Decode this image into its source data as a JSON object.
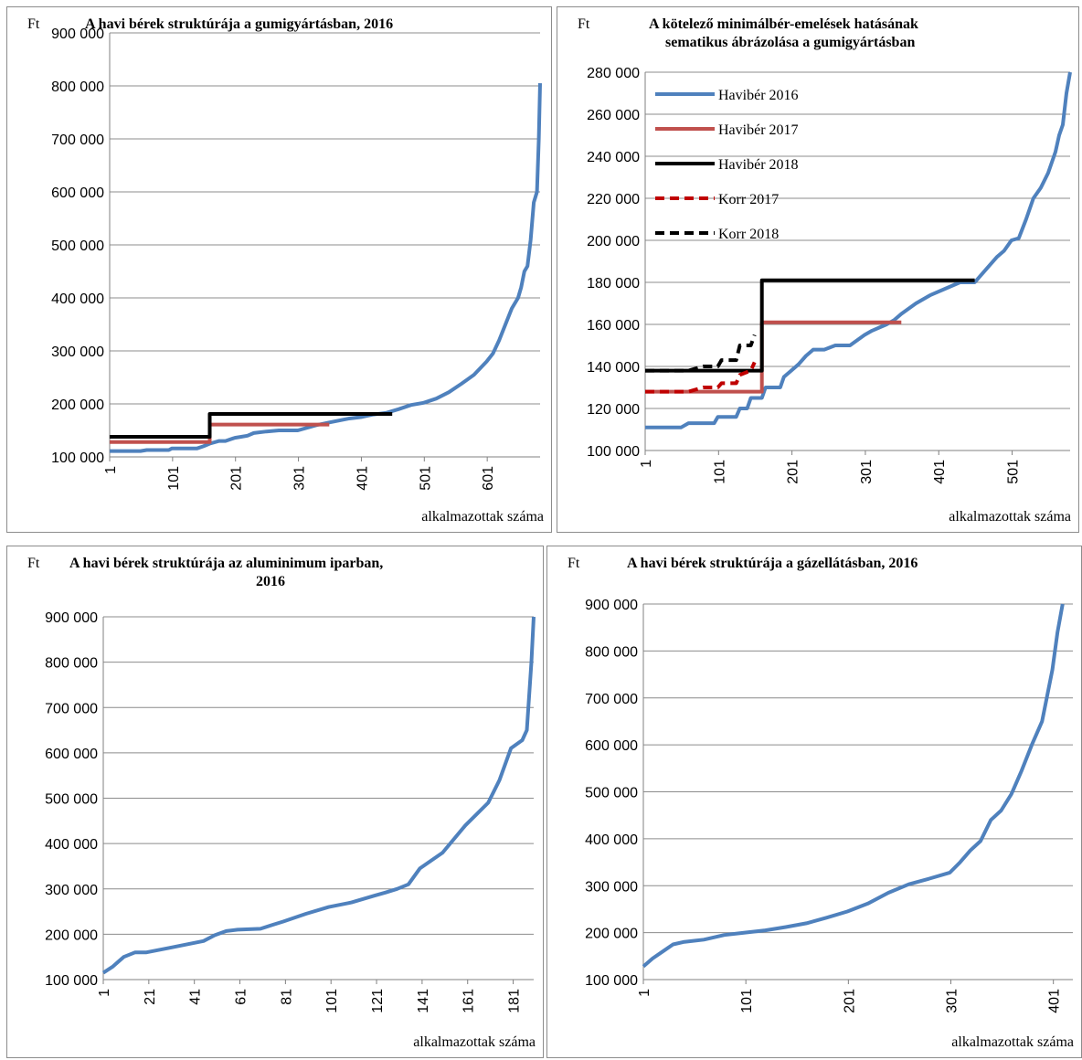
{
  "chart_data": [
    {
      "type": "line",
      "unit_label": "Ft",
      "title": [
        "A havi bérek struktúrája a gumigyártásban, 2016"
      ],
      "xlabel": "alkalmazottak száma",
      "ylim": [
        100000,
        900000
      ],
      "yticks": [
        "100 000",
        "200 000",
        "300 000",
        "400 000",
        "500 000",
        "600 000",
        "700 000",
        "800 000",
        "900 000"
      ],
      "ytick_values": [
        100000,
        200000,
        300000,
        400000,
        500000,
        600000,
        700000,
        800000,
        900000
      ],
      "xlim": [
        1,
        685
      ],
      "xticks": [
        "1",
        "101",
        "201",
        "301",
        "401",
        "501",
        "601"
      ],
      "xtick_values": [
        1,
        101,
        201,
        301,
        401,
        501,
        601
      ],
      "grid": true,
      "series": [
        {
          "color": "#4f81bd",
          "width": 4,
          "dash": false,
          "step": false,
          "x": [
            1,
            50,
            60,
            95,
            100,
            140,
            150,
            160,
            175,
            185,
            200,
            210,
            220,
            230,
            250,
            270,
            300,
            330,
            350,
            380,
            400,
            420,
            440,
            460,
            480,
            500,
            520,
            540,
            560,
            580,
            600,
            610,
            620,
            630,
            640,
            650,
            655,
            660,
            665,
            670,
            675,
            680,
            683,
            685
          ],
          "y": [
            111000,
            111000,
            113000,
            113000,
            116000,
            116000,
            120000,
            125000,
            130000,
            130000,
            136000,
            138000,
            140000,
            145000,
            148000,
            150000,
            150000,
            160000,
            165000,
            172000,
            175000,
            180000,
            183000,
            190000,
            198000,
            202000,
            210000,
            222000,
            238000,
            255000,
            280000,
            295000,
            320000,
            350000,
            380000,
            400000,
            420000,
            450000,
            460000,
            510000,
            580000,
            600000,
            700000,
            805000
          ]
        },
        {
          "color": "#c0504d",
          "width": 4,
          "dash": false,
          "step": true,
          "x": [
            1,
            160,
            160,
            350
          ],
          "y": [
            128000,
            128000,
            161000,
            161000
          ]
        },
        {
          "color": "#000000",
          "width": 4,
          "dash": false,
          "step": true,
          "x": [
            1,
            160,
            160,
            450
          ],
          "y": [
            138000,
            138000,
            181000,
            181000
          ]
        }
      ]
    },
    {
      "type": "line",
      "unit_label": "Ft",
      "title": [
        "A kötelező minimálbér-emelések hatásának",
        "sematikus ábrázolása a  gumigyártásban"
      ],
      "xlabel": "alkalmazottak száma",
      "ylim": [
        100000,
        280000
      ],
      "yticks": [
        "100 000",
        "120 000",
        "140 000",
        "160 000",
        "180 000",
        "200 000",
        "220 000",
        "240 000",
        "260 000",
        "280 000"
      ],
      "ytick_values": [
        100000,
        120000,
        140000,
        160000,
        180000,
        200000,
        220000,
        240000,
        260000,
        280000
      ],
      "xlim": [
        1,
        580
      ],
      "xticks": [
        "1",
        "101",
        "201",
        "301",
        "401",
        "501"
      ],
      "xtick_values": [
        1,
        101,
        201,
        301,
        401,
        501
      ],
      "grid": true,
      "legend": {
        "placement": "top-left",
        "entries": [
          "Havibér 2016",
          "Havibér 2017",
          "Havibér 2018",
          "Korr 2017",
          "Korr 2018"
        ]
      },
      "series": [
        {
          "name": "Havibér 2016",
          "color": "#4f81bd",
          "width": 4,
          "dash": false,
          "step": false,
          "x": [
            1,
            50,
            60,
            95,
            100,
            125,
            130,
            140,
            145,
            160,
            165,
            185,
            190,
            200,
            210,
            220,
            230,
            245,
            260,
            270,
            280,
            300,
            310,
            330,
            340,
            350,
            370,
            390,
            410,
            430,
            450,
            460,
            470,
            480,
            490,
            500,
            510,
            520,
            530,
            540,
            550,
            560,
            565,
            570,
            575,
            580
          ],
          "y": [
            111000,
            111000,
            113000,
            113000,
            116000,
            116000,
            120000,
            120000,
            125000,
            125000,
            130000,
            130000,
            135000,
            138000,
            141000,
            145000,
            148000,
            148000,
            150000,
            150000,
            150000,
            155000,
            157000,
            160000,
            162000,
            165000,
            170000,
            174000,
            177000,
            180000,
            180000,
            184000,
            188000,
            192000,
            195000,
            200000,
            201000,
            210000,
            220000,
            225000,
            232000,
            242000,
            250000,
            255000,
            270000,
            280000
          ]
        },
        {
          "name": "Havibér 2017",
          "color": "#c0504d",
          "width": 4,
          "dash": false,
          "step": true,
          "x": [
            1,
            160,
            160,
            350
          ],
          "y": [
            128000,
            128000,
            161000,
            161000
          ]
        },
        {
          "name": "Havibér 2018",
          "color": "#000000",
          "width": 4,
          "dash": false,
          "step": true,
          "x": [
            1,
            160,
            160,
            450
          ],
          "y": [
            138000,
            138000,
            181000,
            181000
          ]
        },
        {
          "name": "Korr 2017",
          "color": "#c00000",
          "width": 4,
          "dash": true,
          "step": false,
          "x": [
            1,
            60,
            80,
            100,
            105,
            125,
            130,
            145,
            150
          ],
          "y": [
            128000,
            128000,
            130000,
            130000,
            132000,
            132000,
            136000,
            138000,
            142000
          ]
        },
        {
          "name": "Korr 2018",
          "color": "#000000",
          "width": 4,
          "dash": true,
          "step": false,
          "x": [
            1,
            60,
            80,
            100,
            105,
            125,
            130,
            145,
            150
          ],
          "y": [
            138000,
            138000,
            140000,
            140000,
            143000,
            143000,
            150000,
            150000,
            155000
          ]
        }
      ]
    },
    {
      "type": "line",
      "unit_label": "Ft",
      "title": [
        "A havi bérek struktúrája az aluminimum iparban,",
        "2016"
      ],
      "xlabel": "alkalmazottak száma",
      "ylim": [
        100000,
        900000
      ],
      "yticks": [
        "100 000",
        "200 000",
        "300 000",
        "400 000",
        "500 000",
        "600 000",
        "700 000",
        "800 000",
        "900 000"
      ],
      "ytick_values": [
        100000,
        200000,
        300000,
        400000,
        500000,
        600000,
        700000,
        800000,
        900000
      ],
      "xlim": [
        1,
        190
      ],
      "xticks": [
        "1",
        "21",
        "41",
        "61",
        "81",
        "101",
        "121",
        "141",
        "161",
        "181"
      ],
      "xtick_values": [
        1,
        21,
        41,
        61,
        81,
        101,
        121,
        141,
        161,
        181
      ],
      "grid": true,
      "series": [
        {
          "color": "#4f81bd",
          "width": 4,
          "dash": false,
          "step": false,
          "x": [
            1,
            5,
            10,
            15,
            20,
            30,
            40,
            45,
            50,
            55,
            60,
            70,
            75,
            80,
            90,
            100,
            110,
            120,
            125,
            130,
            135,
            140,
            150,
            160,
            170,
            175,
            180,
            185,
            187,
            189,
            190
          ],
          "y": [
            115000,
            128000,
            150000,
            160000,
            160000,
            170000,
            180000,
            185000,
            198000,
            207000,
            210000,
            212000,
            220000,
            228000,
            245000,
            260000,
            270000,
            285000,
            292000,
            300000,
            310000,
            345000,
            380000,
            440000,
            490000,
            540000,
            610000,
            628000,
            650000,
            800000,
            900000
          ]
        }
      ]
    },
    {
      "type": "line",
      "unit_label": "Ft",
      "title": [
        "A havi bérek struktúrája a gázellátásban, 2016"
      ],
      "xlabel": "alkalmazottak száma",
      "ylim": [
        100000,
        900000
      ],
      "yticks": [
        "100 000",
        "200 000",
        "300 000",
        "400 000",
        "500 000",
        "600 000",
        "700 000",
        "800 000",
        "900 000"
      ],
      "ytick_values": [
        100000,
        200000,
        300000,
        400000,
        500000,
        600000,
        700000,
        800000,
        900000
      ],
      "xlim": [
        1,
        420
      ],
      "xticks": [
        "1",
        "101",
        "201",
        "301",
        "401"
      ],
      "xtick_values": [
        1,
        101,
        201,
        301,
        401
      ],
      "grid": true,
      "series": [
        {
          "color": "#4f81bd",
          "width": 4,
          "dash": false,
          "step": false,
          "x": [
            1,
            10,
            20,
            30,
            40,
            60,
            80,
            100,
            120,
            140,
            160,
            180,
            200,
            220,
            240,
            260,
            280,
            300,
            310,
            320,
            330,
            340,
            350,
            360,
            370,
            380,
            390,
            400,
            405,
            410
          ],
          "y": [
            128000,
            145000,
            160000,
            175000,
            180000,
            185000,
            195000,
            200000,
            205000,
            212000,
            220000,
            232000,
            245000,
            262000,
            285000,
            303000,
            315000,
            328000,
            350000,
            375000,
            395000,
            440000,
            460000,
            495000,
            545000,
            600000,
            650000,
            760000,
            840000,
            900000
          ]
        }
      ]
    }
  ]
}
